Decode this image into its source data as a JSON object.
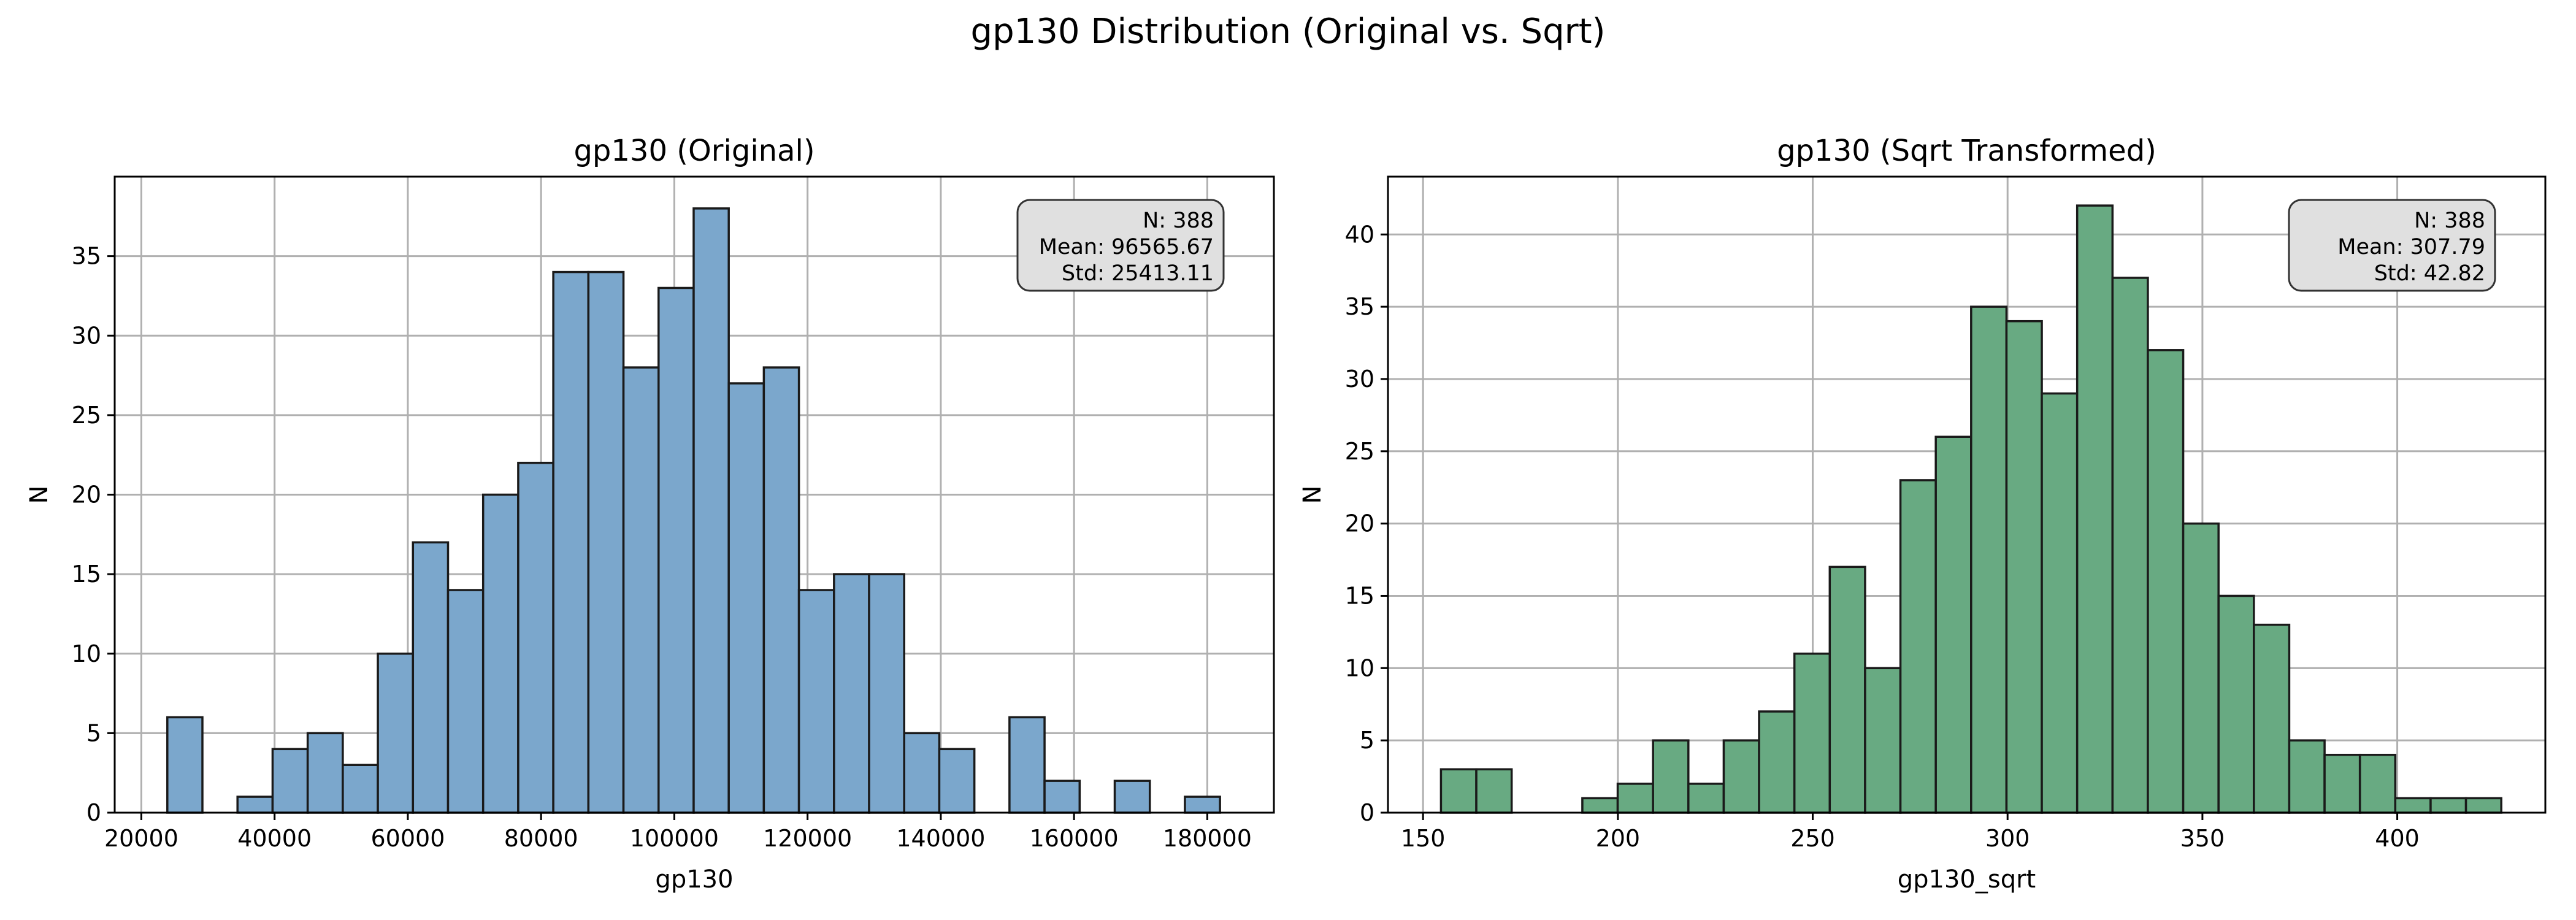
{
  "figure": {
    "title": "gp130 Distribution (Original vs. Sqrt)"
  },
  "colors": {
    "left_bar": "#7BA7CC",
    "right_bar": "#68AA82",
    "edge": "#1a1a1a",
    "grid": "#b0b0b0",
    "stats_box": "#e0e0e0"
  },
  "chart_data": [
    {
      "type": "bar",
      "title": "gp130 (Original)",
      "xlabel": "gp130",
      "ylabel": "N",
      "xlim": [
        16000,
        190000
      ],
      "ylim": [
        0,
        40
      ],
      "grid": true,
      "xticks": [
        20000,
        40000,
        60000,
        80000,
        100000,
        120000,
        140000,
        160000,
        180000
      ],
      "yticks": [
        0,
        5,
        10,
        15,
        20,
        25,
        30,
        35
      ],
      "bin_start": 23900,
      "bin_width": 5267,
      "values": [
        6,
        0,
        1,
        4,
        5,
        3,
        10,
        17,
        14,
        20,
        22,
        34,
        34,
        28,
        33,
        38,
        27,
        28,
        14,
        15,
        15,
        5,
        4,
        0,
        6,
        2,
        0,
        2,
        0,
        1
      ],
      "stats": {
        "n": "N: 388",
        "mean": "Mean: 96565.67",
        "std": "Std: 25413.11"
      },
      "stats_position": "top-right"
    },
    {
      "type": "bar",
      "title": "gp130 (Sqrt Transformed)",
      "xlabel": "gp130_sqrt",
      "ylabel": "N",
      "xlim": [
        141,
        438
      ],
      "ylim": [
        0,
        44
      ],
      "grid": true,
      "xticks": [
        150,
        200,
        250,
        300,
        350,
        400
      ],
      "yticks": [
        0,
        5,
        10,
        15,
        20,
        25,
        30,
        35,
        40
      ],
      "bin_start": 154.6,
      "bin_width": 9.07,
      "values": [
        3,
        3,
        0,
        0,
        1,
        2,
        5,
        2,
        5,
        7,
        11,
        17,
        10,
        23,
        26,
        35,
        34,
        29,
        42,
        37,
        32,
        20,
        15,
        13,
        5,
        4,
        4,
        1,
        1,
        1
      ],
      "stats": {
        "n": "N: 388",
        "mean": "Mean: 307.79",
        "std": "Std: 42.82"
      },
      "stats_position": "top-right"
    }
  ]
}
